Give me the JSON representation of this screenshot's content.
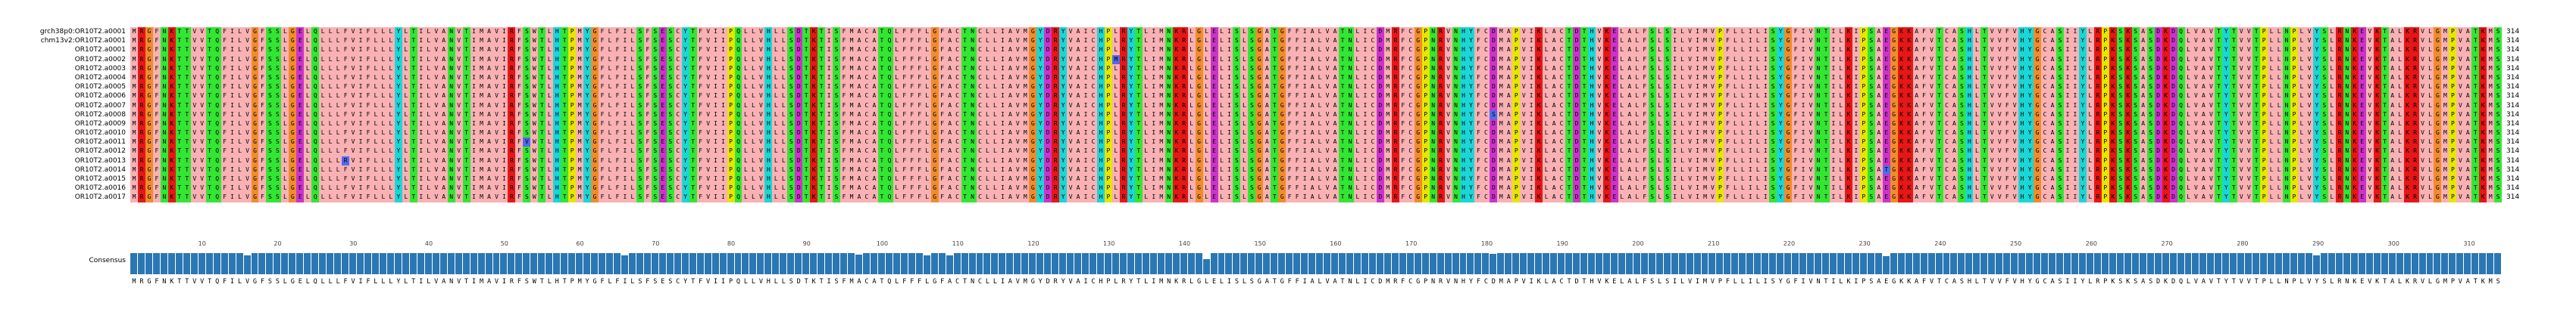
{
  "alignment": {
    "rows": [
      {
        "label": "grch38p0:OR10T2.a0001",
        "count": "314"
      },
      {
        "label": "chm13v2:OR10T2.a0001",
        "count": "314"
      },
      {
        "label": "OR10T2.a0001",
        "count": "314"
      },
      {
        "label": "OR10T2.a0002",
        "count": "314"
      },
      {
        "label": "OR10T2.a0003",
        "count": "314"
      },
      {
        "label": "OR10T2.a0004",
        "count": "314"
      },
      {
        "label": "OR10T2.a0005",
        "count": "314"
      },
      {
        "label": "OR10T2.a0006",
        "count": "314"
      },
      {
        "label": "OR10T2.a0007",
        "count": "314"
      },
      {
        "label": "OR10T2.a0008",
        "count": "314"
      },
      {
        "label": "OR10T2.a0009",
        "count": "314"
      },
      {
        "label": "OR10T2.a0010",
        "count": "314"
      },
      {
        "label": "OR10T2.a0011",
        "count": "314"
      },
      {
        "label": "OR10T2.a0012",
        "count": "314"
      },
      {
        "label": "OR10T2.a0013",
        "count": "314"
      },
      {
        "label": "OR10T2.a0014",
        "count": "314"
      },
      {
        "label": "OR10T2.a0015",
        "count": "314"
      },
      {
        "label": "OR10T2.a0016",
        "count": "314"
      },
      {
        "label": "OR10T2.a0017",
        "count": "314"
      }
    ],
    "consensus_label": "Consensus",
    "consensus_sequence": "MRGFNKTTVVTQFILVGFSSLGELQLLLFVIFLLLYLTILVANVTIMAVIRFSWTLHTPMYGFLFILSFSESCYTFVIIPQLLVHLLSDTKTISFMACATQLFFFLGFACTNCLLIAVMGYDRYVAICHPLRYTLIMNKRLGLELISLSGATGFFIALVATNLICDMRFCGPNRVNHYFCDMAPVIKLACTDTHVKELALFSLSILVIMVPFLLILISYGFIVNTILKIPSAEGKKAFVTCASHLTVVFVHYGCASIIYLRPKSKSASDKDQLVAVTYTVVTPLLNPLVYSLRNKEVKTALKRVLGMPVATKMS",
    "ruler_ticks": [
      "10",
      "20",
      "30",
      "40",
      "50",
      "60",
      "70",
      "80",
      "90",
      "100",
      "110",
      "120",
      "130",
      "140",
      "150",
      "160",
      "170",
      "180",
      "190",
      "200",
      "210",
      "220",
      "230",
      "240",
      "250",
      "260",
      "270",
      "280",
      "290",
      "300",
      "310"
    ],
    "colors": {
      "hydrophobic_pink": "#f9b1b4",
      "green": "#33e633",
      "yellow": "#e6e600",
      "orange": "#f08c2a",
      "magenta": "#cc33cc",
      "blue": "#4f6bf0",
      "red": "#e61717",
      "cyan": "#1bd6d6",
      "consensus_bar": "#2b77b4"
    },
    "variant_cells": [
      {
        "row": 9,
        "pos": 180,
        "aa": "S"
      },
      {
        "row": 14,
        "pos": 28,
        "aa": "R"
      },
      {
        "row": 12,
        "pos": 52,
        "aa": "V"
      },
      {
        "row": 15,
        "pos": 232,
        "aa": "T"
      },
      {
        "row": 3,
        "pos": 130,
        "aa": "M"
      }
    ],
    "consensus_dips": [
      {
        "pos": 15,
        "level": 0.88
      },
      {
        "pos": 65,
        "level": 0.9
      },
      {
        "pos": 96,
        "level": 0.93
      },
      {
        "pos": 105,
        "level": 0.88
      },
      {
        "pos": 108,
        "level": 0.9
      },
      {
        "pos": 142,
        "level": 0.72
      },
      {
        "pos": 180,
        "level": 0.95
      },
      {
        "pos": 232,
        "level": 0.86
      },
      {
        "pos": 289,
        "level": 0.9
      }
    ]
  }
}
